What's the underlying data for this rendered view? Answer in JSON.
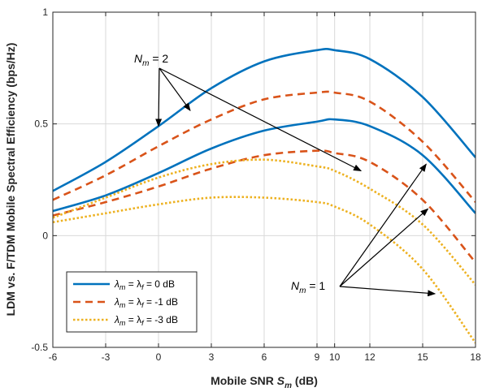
{
  "chart_data": {
    "type": "line",
    "xlabel_main": "Mobile SNR ",
    "xlabel_sym": "S",
    "xlabel_sub": "m",
    "xlabel_unit": " (dB)",
    "ylabel": "LDM vs. F/TDM Mobile Spectral Efficiency (bps/Hz)",
    "xlim": [
      -6,
      18
    ],
    "ylim": [
      -0.5,
      1
    ],
    "xticks": [
      -6,
      -3,
      0,
      3,
      6,
      9,
      10,
      12,
      15,
      18
    ],
    "yticks": [
      -0.5,
      0,
      0.5,
      1
    ],
    "ytick_labels": [
      "-0.5",
      "0",
      "0.5",
      "1"
    ],
    "grid": true,
    "legend_placement": "bottom-left",
    "colors": {
      "blue": "#0072BD",
      "orange": "#D95319",
      "yellow": "#EDB120"
    },
    "x": [
      -6,
      -3,
      0,
      3,
      6,
      9,
      10,
      12,
      15,
      18
    ],
    "series": [
      {
        "legend": "λm = λf = 0 dB",
        "Nm": 2,
        "style": "solid",
        "color": "#0072BD",
        "values": [
          0.2,
          0.33,
          0.49,
          0.66,
          0.78,
          0.83,
          0.83,
          0.79,
          0.62,
          0.35
        ]
      },
      {
        "legend": "λm = λf = 0 dB",
        "Nm": 1,
        "style": "solid",
        "color": "#0072BD",
        "values": [
          0.11,
          0.18,
          0.28,
          0.39,
          0.47,
          0.51,
          0.52,
          0.49,
          0.36,
          0.1
        ]
      },
      {
        "legend": "λm = λf = -1 dB",
        "Nm": 2,
        "style": "dashed",
        "color": "#D95319",
        "values": [
          0.16,
          0.27,
          0.4,
          0.52,
          0.61,
          0.64,
          0.64,
          0.6,
          0.42,
          0.15
        ]
      },
      {
        "legend": "λm = λf = -1 dB",
        "Nm": 1,
        "style": "dashed",
        "color": "#D95319",
        "values": [
          0.09,
          0.15,
          0.22,
          0.3,
          0.36,
          0.38,
          0.37,
          0.33,
          0.16,
          -0.12
        ]
      },
      {
        "legend": "λm = λf = -3 dB",
        "Nm": 2,
        "style": "dotted",
        "color": "#EDB120",
        "values": [
          0.08,
          0.17,
          0.26,
          0.32,
          0.34,
          0.31,
          0.29,
          0.21,
          0.05,
          -0.22
        ]
      },
      {
        "legend": "λm = λf = -3 dB",
        "Nm": 1,
        "style": "dotted",
        "color": "#EDB120",
        "values": [
          0.06,
          0.1,
          0.14,
          0.17,
          0.17,
          0.15,
          0.13,
          0.05,
          -0.15,
          -0.48
        ]
      }
    ],
    "legend": [
      {
        "lhs": "λ",
        "lhs_sub": "m",
        "mid": " = λ",
        "mid_sub": "f",
        "rhs": " = 0 dB",
        "style": "solid",
        "color": "#0072BD"
      },
      {
        "lhs": "λ",
        "lhs_sub": "m",
        "mid": " = λ",
        "mid_sub": "f",
        "rhs": " = -1 dB",
        "style": "dashed",
        "color": "#D95319"
      },
      {
        "lhs": "λ",
        "lhs_sub": "m",
        "mid": " = λ",
        "mid_sub": "f",
        "rhs": " = -3 dB",
        "style": "dotted",
        "color": "#EDB120"
      }
    ],
    "annotations": [
      {
        "sym": "N",
        "sub": "m",
        "rhs": " = 2",
        "arrow_targets": [
          [
            0,
            0.49
          ],
          [
            1.8,
            0.56
          ],
          [
            11.5,
            0.29
          ]
        ]
      },
      {
        "sym": "N",
        "sub": "m",
        "rhs": " = 1",
        "arrow_targets": [
          [
            15.2,
            0.32
          ],
          [
            15.3,
            0.12
          ],
          [
            15.7,
            -0.26
          ]
        ]
      }
    ]
  }
}
